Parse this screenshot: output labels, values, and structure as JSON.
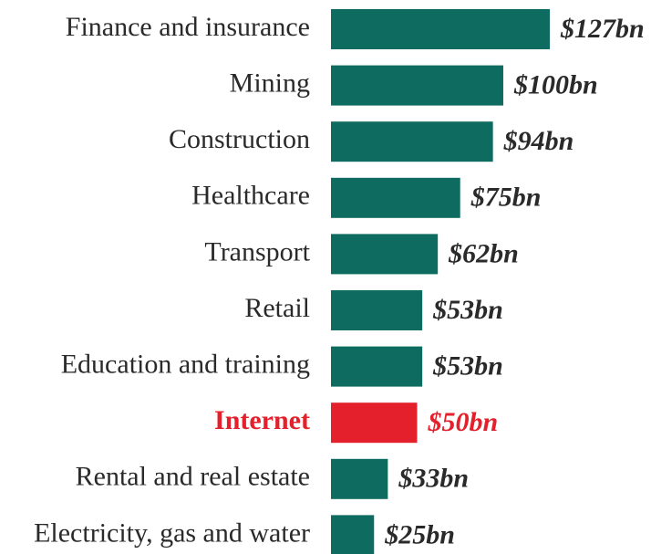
{
  "chart_data": {
    "type": "barh",
    "categories": [
      "Finance and insurance",
      "Mining",
      "Construction",
      "Healthcare",
      "Transport",
      "Retail",
      "Education and training",
      "Internet",
      "Rental and real estate",
      "Electricity, gas and water"
    ],
    "values": [
      127,
      100,
      94,
      75,
      62,
      53,
      53,
      50,
      33,
      25
    ],
    "value_labels": [
      "$127bn",
      "$100bn",
      "$94bn",
      "$75bn",
      "$62bn",
      "$53bn",
      "$53bn",
      "$50bn",
      "$33bn",
      "$25bn"
    ],
    "color": "#0e6b5f",
    "colors": [
      "#0e6b5f",
      "#0e6b5f",
      "#0e6b5f",
      "#0e6b5f",
      "#0e6b5f",
      "#0e6b5f",
      "#0e6b5f",
      "#e3202b",
      "#0e6b5f",
      "#0e6b5f"
    ]
  }
}
